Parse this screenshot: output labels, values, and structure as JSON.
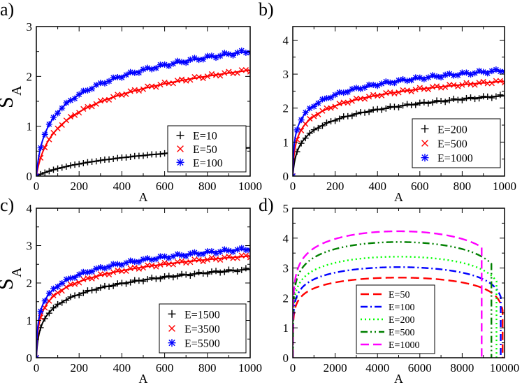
{
  "chart_data": [
    {
      "panel": "a)",
      "type": "scatter",
      "xlabel": "A",
      "ylabel": "S",
      "ylabel_sub": "A",
      "xlim": [
        0,
        1000
      ],
      "ylim": [
        0,
        3
      ],
      "xticks": [
        0,
        200,
        400,
        600,
        800,
        1000
      ],
      "yticks": [
        0,
        1,
        2,
        3
      ],
      "legend_position": "bottom-right",
      "series": [
        {
          "name": "E=10",
          "color": "#000000",
          "marker": "plus",
          "curve": {
            "model": "log",
            "a": 0.262,
            "b": 0.0077
          }
        },
        {
          "name": "E=50",
          "color": "#ff0000",
          "marker": "x",
          "curve": {
            "model": "log",
            "a": 0.548,
            "b": 0.0472
          }
        },
        {
          "name": "E=100",
          "color": "#0000ff",
          "marker": "asterisk",
          "curve": {
            "model": "log",
            "a": 0.555,
            "b": 0.09
          }
        }
      ]
    },
    {
      "panel": "b)",
      "type": "scatter",
      "xlabel": "A",
      "ylabel": "",
      "xlim": [
        0,
        1000
      ],
      "ylim": [
        0,
        4.4
      ],
      "xticks": [
        0,
        200,
        400,
        600,
        800,
        1000
      ],
      "yticks": [
        0,
        1,
        2,
        3,
        4
      ],
      "legend_position": "bottom-right",
      "series": [
        {
          "name": "E=200",
          "color": "#000000",
          "marker": "plus",
          "curve": {
            "model": "log",
            "a": 0.45,
            "b": 0.19
          }
        },
        {
          "name": "E=500",
          "color": "#ff0000",
          "marker": "x",
          "curve": {
            "model": "log",
            "a": 0.45,
            "b": 0.49
          }
        },
        {
          "name": "E=1000",
          "color": "#0000ff",
          "marker": "asterisk",
          "curve": {
            "model": "log",
            "a": 0.45,
            "b": 1.0
          }
        }
      ]
    },
    {
      "panel": "c)",
      "type": "scatter",
      "xlabel": "A",
      "ylabel": "S",
      "ylabel_sub": "A",
      "xlim": [
        0,
        1000
      ],
      "ylim": [
        0,
        4
      ],
      "xticks": [
        0,
        200,
        400,
        600,
        800,
        1000
      ],
      "yticks": [
        0,
        1,
        2,
        3,
        4
      ],
      "legend_position": "bottom-right",
      "series": [
        {
          "name": "E=1500",
          "color": "#000000",
          "marker": "plus",
          "curve": {
            "model": "log",
            "a": 0.42,
            "b": 0.28
          }
        },
        {
          "name": "E=3500",
          "color": "#ff0000",
          "marker": "x",
          "curve": {
            "model": "log",
            "a": 0.43,
            "b": 0.56
          }
        },
        {
          "name": "E=5500",
          "color": "#0000ff",
          "marker": "asterisk",
          "curve": {
            "model": "log",
            "a": 0.43,
            "b": 0.87
          }
        }
      ]
    },
    {
      "panel": "d)",
      "type": "line",
      "xlabel": "A",
      "ylabel": "",
      "xlim": [
        0,
        10000
      ],
      "ylim": [
        0,
        5
      ],
      "xticks": [
        0,
        2000,
        4000,
        6000,
        8000,
        10000
      ],
      "yticks": [
        0,
        1,
        2,
        3,
        4,
        5
      ],
      "legend_position": "bottom-center",
      "series": [
        {
          "name": "E=50",
          "color": "#ff0000",
          "dash": "long-dash",
          "peak": 2.68,
          "cut": 9910
        },
        {
          "name": "E=100",
          "color": "#0000ff",
          "dash": "dash-dot",
          "peak": 3.03,
          "cut": 9820
        },
        {
          "name": "E=200",
          "color": "#00ff00",
          "dash": "dot",
          "peak": 3.38,
          "cut": 9620
        },
        {
          "name": "E=500",
          "color": "#008000",
          "dash": "dash-dot-dot",
          "peak": 3.87,
          "cut": 9380
        },
        {
          "name": "E=1000",
          "color": "#ff00ff",
          "dash": "long-dash",
          "peak": 4.23,
          "cut": 8920
        }
      ]
    }
  ]
}
